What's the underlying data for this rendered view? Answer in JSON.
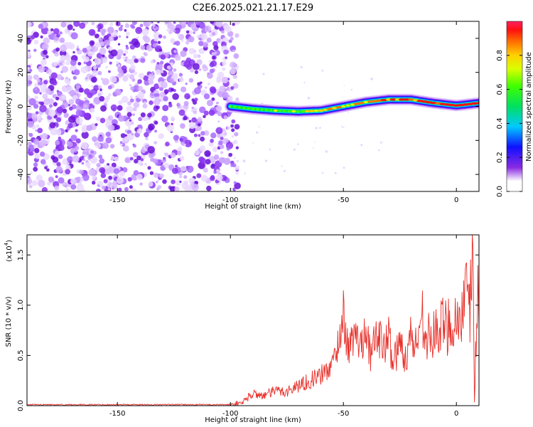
{
  "title": "C2E6.2025.021.21.17.E29",
  "colors": {
    "snr_line": "#e8302a",
    "background": "#ffffff",
    "axis": "#000000"
  },
  "chart_data": [
    {
      "type": "heatmap",
      "xlabel": "Height of straight line (km)",
      "ylabel": "Frequency (Hz)",
      "xlim": [
        -190,
        10
      ],
      "ylim": [
        -50,
        50
      ],
      "xticks": [
        -150,
        -100,
        -50,
        0
      ],
      "xtick_labels": [
        "-150",
        "-100",
        "-50",
        "0"
      ],
      "yticks": [
        -40,
        -20,
        0,
        20,
        40
      ],
      "ytick_labels": [
        "-40",
        "-20",
        "0",
        "20",
        "40"
      ],
      "noise_region_x": [
        -190,
        -100
      ],
      "signal_track": {
        "x": [
          -100,
          -90,
          -80,
          -70,
          -60,
          -50,
          -40,
          -30,
          -20,
          -10,
          0,
          10
        ],
        "y": [
          0,
          -1.5,
          -2.5,
          -3,
          -2.5,
          0,
          2.5,
          4,
          4,
          2,
          0.5,
          2
        ]
      },
      "colorbar": {
        "label": "Normalized spectral amplitude",
        "range": [
          0,
          1
        ],
        "ticks": [
          0.0,
          0.2,
          0.4,
          0.6,
          0.8
        ],
        "tick_labels": [
          "0.0",
          "0.2",
          "0.4",
          "0.6",
          "0.8"
        ]
      },
      "grid": false
    },
    {
      "type": "line",
      "xlabel": "Height of straight line (km)",
      "ylabel": "SNR (10 * v/v)",
      "scale_note": "(x10",
      "scale_exp": "4",
      "xlim": [
        -190,
        10
      ],
      "ylim": [
        0,
        1.7
      ],
      "xticks": [
        -150,
        -100,
        -50,
        0
      ],
      "xtick_labels": [
        "-150",
        "-100",
        "-50",
        "0"
      ],
      "yticks": [
        0.0,
        0.5,
        1.0,
        1.5
      ],
      "ytick_labels": [
        "0.0",
        "0.5",
        "1.0",
        "1.5"
      ],
      "series": [
        {
          "x": [
            -190,
            -100,
            -95,
            -90,
            -85,
            -80,
            -75,
            -70,
            -65,
            -60,
            -55,
            -52,
            -50,
            -48,
            -45,
            -42,
            -40,
            -38,
            -35,
            -32,
            -30,
            -28,
            -25,
            -22,
            -20,
            -18,
            -15,
            -12,
            -10,
            -8,
            -5,
            -3,
            0,
            3,
            5,
            6,
            7,
            8,
            9,
            10
          ],
          "y": [
            0.01,
            0.01,
            0.03,
            0.12,
            0.1,
            0.15,
            0.14,
            0.2,
            0.25,
            0.3,
            0.4,
            0.65,
            0.92,
            0.55,
            0.7,
            0.6,
            0.85,
            0.45,
            0.75,
            0.55,
            0.7,
            0.45,
            0.6,
            0.5,
            0.7,
            0.6,
            0.9,
            0.65,
            0.7,
            0.75,
            0.8,
            0.82,
            0.85,
            0.95,
            1.1,
            0.9,
            1.7,
            0.1,
            1.0,
            1.0
          ]
        }
      ],
      "grid": false
    }
  ]
}
